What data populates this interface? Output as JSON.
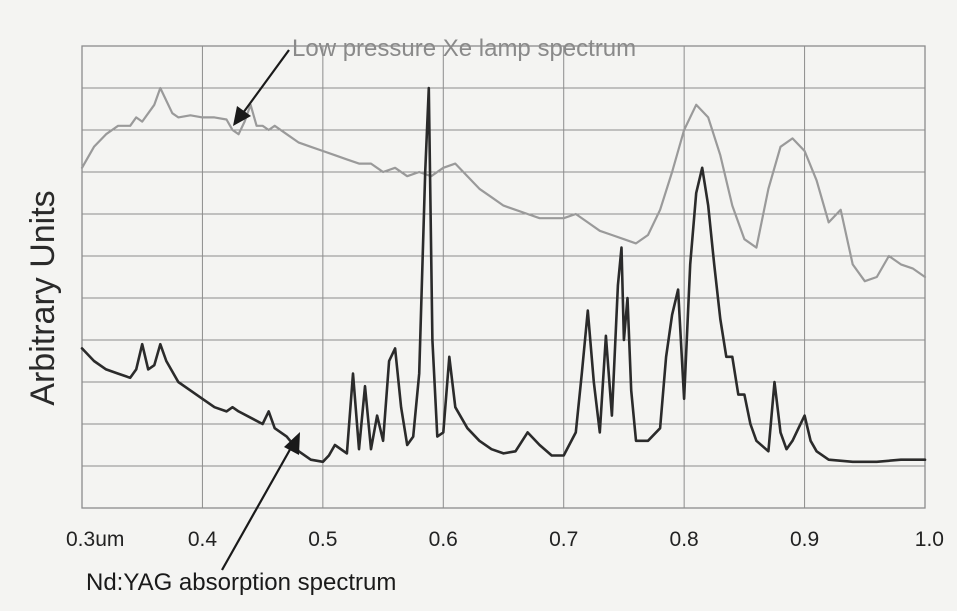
{
  "chart_data": {
    "type": "line",
    "title": "",
    "xlabel": "",
    "ylabel": "Arbitrary Units",
    "xlim": [
      0.3,
      1.0
    ],
    "ylim": [
      0,
      11
    ],
    "grid": true,
    "x_tick_labels": [
      "0.3um",
      "0.4",
      "0.5",
      "0.6",
      "0.7",
      "0.8",
      "0.9",
      "1.0"
    ],
    "x_tick_values": [
      0.3,
      0.4,
      0.5,
      0.6,
      0.7,
      0.8,
      0.9,
      1.0
    ],
    "colors": {
      "xe": "#9a9a9a",
      "nd": "#2b2b2b",
      "grid": "#8c8c8c"
    },
    "annotations": [
      {
        "text": "Low pressure Xe lamp spectrum",
        "series": "xe"
      },
      {
        "text": "Nd:YAG absorption spectrum",
        "series": "nd"
      }
    ],
    "series": [
      {
        "id": "xe",
        "x": [
          0.3,
          0.31,
          0.32,
          0.33,
          0.34,
          0.345,
          0.35,
          0.36,
          0.365,
          0.37,
          0.375,
          0.38,
          0.39,
          0.4,
          0.41,
          0.42,
          0.425,
          0.43,
          0.435,
          0.44,
          0.445,
          0.45,
          0.455,
          0.46,
          0.47,
          0.48,
          0.49,
          0.5,
          0.51,
          0.52,
          0.53,
          0.54,
          0.55,
          0.56,
          0.57,
          0.58,
          0.59,
          0.6,
          0.61,
          0.62,
          0.63,
          0.64,
          0.65,
          0.66,
          0.67,
          0.68,
          0.69,
          0.7,
          0.71,
          0.72,
          0.73,
          0.74,
          0.75,
          0.76,
          0.77,
          0.78,
          0.79,
          0.8,
          0.81,
          0.82,
          0.83,
          0.84,
          0.85,
          0.86,
          0.87,
          0.88,
          0.89,
          0.9,
          0.91,
          0.92,
          0.93,
          0.94,
          0.95,
          0.96,
          0.97,
          0.98,
          0.99,
          1.0
        ],
        "y": [
          8.1,
          8.6,
          8.9,
          9.1,
          9.1,
          9.3,
          9.2,
          9.6,
          10.0,
          9.7,
          9.4,
          9.3,
          9.35,
          9.3,
          9.3,
          9.25,
          9.0,
          8.9,
          9.2,
          9.6,
          9.1,
          9.1,
          9.0,
          9.1,
          8.9,
          8.7,
          8.6,
          8.5,
          8.4,
          8.3,
          8.2,
          8.2,
          8.0,
          8.1,
          7.9,
          8.0,
          7.9,
          8.1,
          8.2,
          7.9,
          7.6,
          7.4,
          7.2,
          7.1,
          7.0,
          6.9,
          6.9,
          6.9,
          7.0,
          6.8,
          6.6,
          6.5,
          6.4,
          6.3,
          6.5,
          7.1,
          8.0,
          9.0,
          9.6,
          9.3,
          8.4,
          7.2,
          6.4,
          6.2,
          7.6,
          8.6,
          8.8,
          8.5,
          7.8,
          6.8,
          7.1,
          5.8,
          5.4,
          5.5,
          6.0,
          5.8,
          5.7,
          5.5
        ]
      },
      {
        "id": "nd",
        "x": [
          0.3,
          0.31,
          0.32,
          0.33,
          0.34,
          0.345,
          0.35,
          0.355,
          0.36,
          0.365,
          0.37,
          0.38,
          0.39,
          0.4,
          0.41,
          0.42,
          0.425,
          0.43,
          0.44,
          0.45,
          0.455,
          0.46,
          0.47,
          0.48,
          0.49,
          0.5,
          0.505,
          0.51,
          0.52,
          0.525,
          0.53,
          0.535,
          0.54,
          0.545,
          0.55,
          0.555,
          0.56,
          0.565,
          0.57,
          0.575,
          0.58,
          0.585,
          0.588,
          0.591,
          0.595,
          0.6,
          0.605,
          0.61,
          0.62,
          0.63,
          0.64,
          0.65,
          0.66,
          0.67,
          0.68,
          0.69,
          0.7,
          0.71,
          0.715,
          0.72,
          0.725,
          0.73,
          0.735,
          0.74,
          0.745,
          0.748,
          0.75,
          0.753,
          0.756,
          0.76,
          0.77,
          0.78,
          0.785,
          0.79,
          0.795,
          0.8,
          0.805,
          0.81,
          0.815,
          0.82,
          0.825,
          0.83,
          0.835,
          0.84,
          0.845,
          0.85,
          0.855,
          0.86,
          0.87,
          0.875,
          0.88,
          0.885,
          0.89,
          0.895,
          0.9,
          0.905,
          0.91,
          0.92,
          0.94,
          0.96,
          0.98,
          1.0
        ],
        "y": [
          3.8,
          3.5,
          3.3,
          3.2,
          3.1,
          3.3,
          3.9,
          3.3,
          3.4,
          3.9,
          3.5,
          3.0,
          2.8,
          2.6,
          2.4,
          2.3,
          2.4,
          2.3,
          2.15,
          2.0,
          2.3,
          1.9,
          1.7,
          1.35,
          1.15,
          1.1,
          1.25,
          1.5,
          1.3,
          3.2,
          1.4,
          2.9,
          1.4,
          2.2,
          1.6,
          3.5,
          3.8,
          2.4,
          1.5,
          1.7,
          3.2,
          8.0,
          10.0,
          4.0,
          1.7,
          1.8,
          3.6,
          2.4,
          1.9,
          1.6,
          1.4,
          1.3,
          1.35,
          1.8,
          1.5,
          1.25,
          1.25,
          1.8,
          3.2,
          4.7,
          3.0,
          1.8,
          4.1,
          2.2,
          5.3,
          6.2,
          4.0,
          5.0,
          2.8,
          1.6,
          1.6,
          1.9,
          3.6,
          4.6,
          5.2,
          2.6,
          5.8,
          7.5,
          8.1,
          7.2,
          5.8,
          4.5,
          3.6,
          3.6,
          2.7,
          2.7,
          2.0,
          1.6,
          1.35,
          3.0,
          1.8,
          1.4,
          1.6,
          1.9,
          2.2,
          1.6,
          1.35,
          1.15,
          1.1,
          1.1,
          1.15,
          1.15
        ]
      }
    ]
  }
}
